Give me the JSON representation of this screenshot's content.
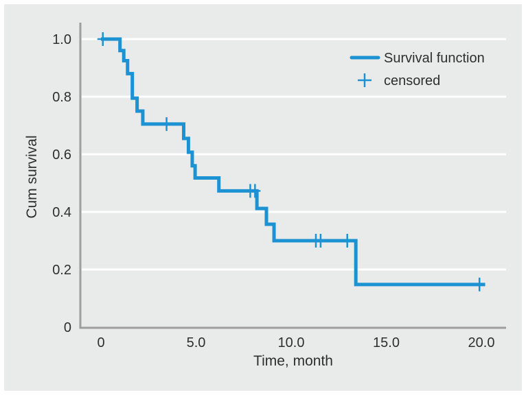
{
  "colors": {
    "background": "#ffffff",
    "panel": "#e9eaea",
    "grid": "#ffffff",
    "axis": "#9e9e9e",
    "curve": "#1c92d2",
    "text": "#2e2e2e"
  },
  "chart_data": {
    "type": "line",
    "subtype": "kaplan-meier-step-function",
    "title": "",
    "xlabel": "Time, month",
    "ylabel": "Cum survival",
    "xlim": [
      0,
      20
    ],
    "ylim": [
      0,
      1.0
    ],
    "grid": "horizontal-white-on-gray",
    "xticks": [
      {
        "value": 0,
        "label": "0"
      },
      {
        "value": 5,
        "label": "5.0"
      },
      {
        "value": 10,
        "label": "10.0"
      },
      {
        "value": 15,
        "label": "15.0"
      },
      {
        "value": 20,
        "label": "20.0"
      }
    ],
    "yticks": [
      {
        "value": 0,
        "label": "0"
      },
      {
        "value": 0.2,
        "label": "0.2"
      },
      {
        "value": 0.4,
        "label": "0.4"
      },
      {
        "value": 0.6,
        "label": "0.6"
      },
      {
        "value": 0.8,
        "label": "0.8"
      },
      {
        "value": 1.0,
        "label": "1.0"
      }
    ],
    "ygrid_values": [
      0.2,
      0.4,
      0.6,
      0.8,
      1.0
    ],
    "legend": {
      "position": "top-right",
      "entries": [
        {
          "label": "Survival function",
          "marker": "line-icon"
        },
        {
          "label": "censored",
          "marker": "plus-icon"
        }
      ]
    },
    "series": [
      {
        "name": "Survival function",
        "color": "#1c92d2",
        "steps": [
          {
            "t": 0,
            "s": 1.0
          },
          {
            "t": 1.0,
            "s": 0.96
          },
          {
            "t": 1.2,
            "s": 0.925
          },
          {
            "t": 1.4,
            "s": 0.88
          },
          {
            "t": 1.65,
            "s": 0.795
          },
          {
            "t": 1.9,
            "s": 0.75
          },
          {
            "t": 2.2,
            "s": 0.705
          },
          {
            "t": 4.35,
            "s": 0.655
          },
          {
            "t": 4.6,
            "s": 0.607
          },
          {
            "t": 4.8,
            "s": 0.56
          },
          {
            "t": 4.95,
            "s": 0.518
          },
          {
            "t": 6.2,
            "s": 0.473
          },
          {
            "t": 8.2,
            "s": 0.412
          },
          {
            "t": 8.7,
            "s": 0.357
          },
          {
            "t": 9.1,
            "s": 0.3
          },
          {
            "t": 13.4,
            "s": 0.148
          }
        ],
        "end_t": 20.2
      }
    ],
    "censored": {
      "name": "censored",
      "color": "#1c92d2",
      "points": [
        {
          "t": 0.1,
          "s": 1.0
        },
        {
          "t": 3.45,
          "s": 0.705
        },
        {
          "t": 7.85,
          "s": 0.473
        },
        {
          "t": 8.1,
          "s": 0.473
        },
        {
          "t": 11.3,
          "s": 0.3
        },
        {
          "t": 11.55,
          "s": 0.3
        },
        {
          "t": 12.95,
          "s": 0.3
        },
        {
          "t": 19.9,
          "s": 0.148
        }
      ]
    }
  }
}
